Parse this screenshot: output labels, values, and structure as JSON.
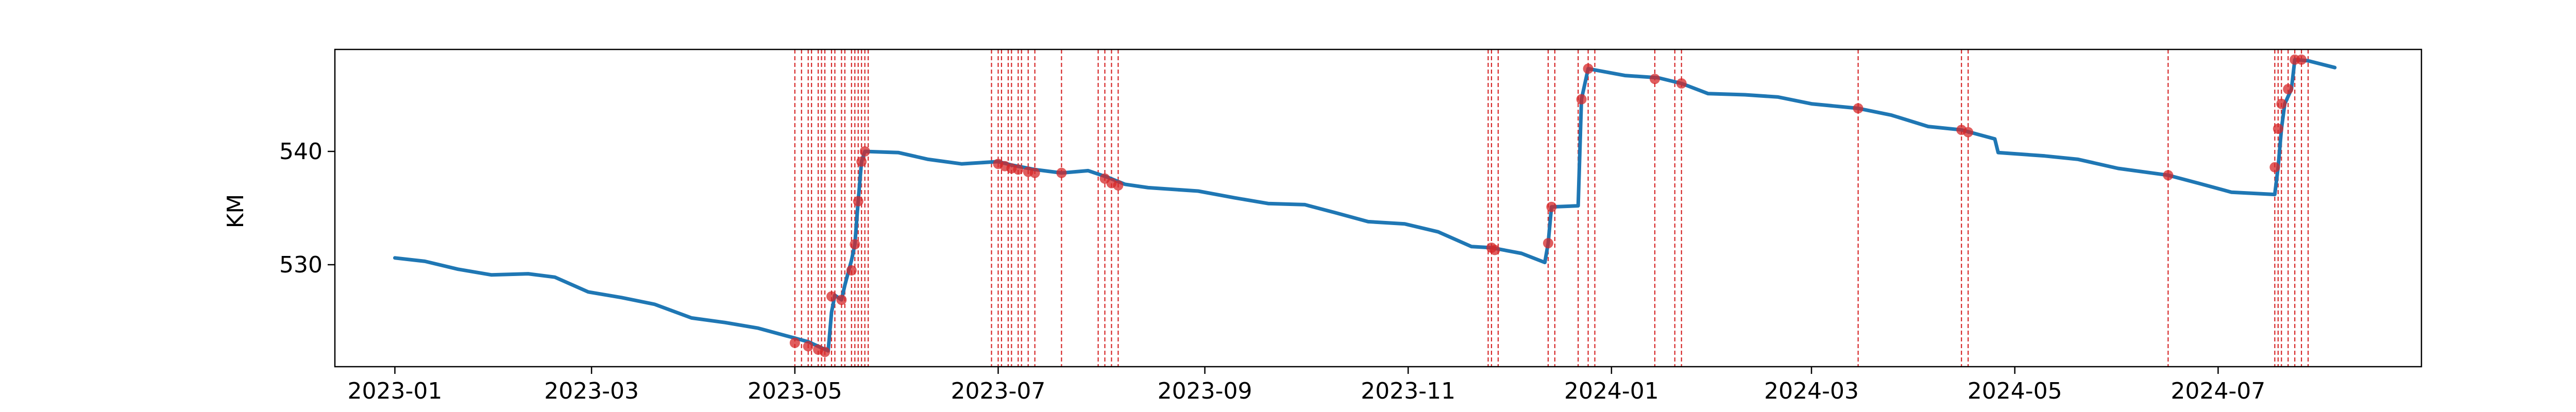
{
  "chart_data": {
    "type": "line",
    "title": "",
    "xlabel": "",
    "ylabel": "KM",
    "xlim": [
      "2022-12-14",
      "2024-08-31"
    ],
    "ylim": [
      521,
      549
    ],
    "grid": false,
    "line_color": "#1f77b4",
    "event_color": "#d62728",
    "x_ticks": [
      "2023-01-01",
      "2023-03-01",
      "2023-05-01",
      "2023-07-01",
      "2023-09-01",
      "2023-11-01",
      "2024-01-01",
      "2024-03-01",
      "2024-05-01",
      "2024-07-01"
    ],
    "x_tick_labels": [
      "2023-01",
      "2023-03",
      "2023-05",
      "2023-07",
      "2023-09",
      "2023-11",
      "2024-01",
      "2024-03",
      "2024-05",
      "2024-07"
    ],
    "y_ticks": [
      530,
      540
    ],
    "y_tick_labels": [
      "530",
      "540"
    ],
    "series": [
      {
        "values": [
          [
            "2023-01-01",
            530.6
          ],
          [
            "2023-01-10",
            530.3
          ],
          [
            "2023-01-20",
            529.6
          ],
          [
            "2023-01-30",
            529.1
          ],
          [
            "2023-02-10",
            529.2
          ],
          [
            "2023-02-18",
            528.9
          ],
          [
            "2023-02-28",
            527.6
          ],
          [
            "2023-03-10",
            527.1
          ],
          [
            "2023-03-20",
            526.5
          ],
          [
            "2023-03-31",
            525.3
          ],
          [
            "2023-04-10",
            524.9
          ],
          [
            "2023-04-20",
            524.4
          ],
          [
            "2023-04-30",
            523.6
          ],
          [
            "2023-05-05",
            523.2
          ],
          [
            "2023-05-08",
            522.8
          ],
          [
            "2023-05-11",
            522.4
          ],
          [
            "2023-05-12",
            525.8
          ],
          [
            "2023-05-13",
            527.3
          ],
          [
            "2023-05-15",
            526.9
          ],
          [
            "2023-05-16",
            528.2
          ],
          [
            "2023-05-18",
            530.4
          ],
          [
            "2023-05-19",
            531.8
          ],
          [
            "2023-05-20",
            535.6
          ],
          [
            "2023-05-21",
            539.1
          ],
          [
            "2023-05-22",
            540.0
          ],
          [
            "2023-06-01",
            539.9
          ],
          [
            "2023-06-10",
            539.3
          ],
          [
            "2023-06-20",
            538.9
          ],
          [
            "2023-07-01",
            539.1
          ],
          [
            "2023-07-05",
            538.8
          ],
          [
            "2023-07-12",
            538.4
          ],
          [
            "2023-07-20",
            538.1
          ],
          [
            "2023-07-28",
            538.3
          ],
          [
            "2023-08-03",
            537.7
          ],
          [
            "2023-08-08",
            537.1
          ],
          [
            "2023-08-15",
            536.8
          ],
          [
            "2023-08-30",
            536.5
          ],
          [
            "2023-09-10",
            535.9
          ],
          [
            "2023-09-20",
            535.4
          ],
          [
            "2023-10-01",
            535.3
          ],
          [
            "2023-10-10",
            534.6
          ],
          [
            "2023-10-20",
            533.8
          ],
          [
            "2023-10-31",
            533.6
          ],
          [
            "2023-11-10",
            532.9
          ],
          [
            "2023-11-20",
            531.6
          ],
          [
            "2023-11-26",
            531.5
          ],
          [
            "2023-12-05",
            531.0
          ],
          [
            "2023-12-12",
            530.2
          ],
          [
            "2023-12-13",
            531.9
          ],
          [
            "2023-12-14",
            535.1
          ],
          [
            "2023-12-22",
            535.2
          ],
          [
            "2023-12-23",
            544.6
          ],
          [
            "2023-12-25",
            547.3
          ],
          [
            "2024-01-05",
            546.7
          ],
          [
            "2024-01-15",
            546.5
          ],
          [
            "2024-01-22",
            546.0
          ],
          [
            "2024-01-30",
            545.1
          ],
          [
            "2024-02-10",
            545.0
          ],
          [
            "2024-02-20",
            544.8
          ],
          [
            "2024-03-01",
            544.2
          ],
          [
            "2024-03-15",
            543.8
          ],
          [
            "2024-03-25",
            543.2
          ],
          [
            "2024-04-05",
            542.2
          ],
          [
            "2024-04-15",
            541.9
          ],
          [
            "2024-04-20",
            541.5
          ],
          [
            "2024-04-25",
            541.1
          ],
          [
            "2024-04-26",
            539.9
          ],
          [
            "2024-05-10",
            539.6
          ],
          [
            "2024-05-20",
            539.3
          ],
          [
            "2024-06-01",
            538.5
          ],
          [
            "2024-06-16",
            537.9
          ],
          [
            "2024-06-25",
            537.2
          ],
          [
            "2024-07-05",
            536.4
          ],
          [
            "2024-07-18",
            536.2
          ],
          [
            "2024-07-19",
            538.6
          ],
          [
            "2024-07-20",
            542.0
          ],
          [
            "2024-07-21",
            544.2
          ],
          [
            "2024-07-23",
            545.5
          ],
          [
            "2024-07-24",
            548.1
          ],
          [
            "2024-07-28",
            548.0
          ],
          [
            "2024-08-05",
            547.4
          ]
        ]
      }
    ],
    "events": [
      "2023-05-01",
      "2023-05-03",
      "2023-05-05",
      "2023-05-06",
      "2023-05-08",
      "2023-05-09",
      "2023-05-10",
      "2023-05-12",
      "2023-05-13",
      "2023-05-15",
      "2023-05-16",
      "2023-05-18",
      "2023-05-19",
      "2023-05-20",
      "2023-05-21",
      "2023-05-22",
      "2023-05-23",
      "2023-06-29",
      "2023-07-01",
      "2023-07-02",
      "2023-07-04",
      "2023-07-05",
      "2023-07-07",
      "2023-07-08",
      "2023-07-10",
      "2023-07-12",
      "2023-07-20",
      "2023-07-31",
      "2023-08-02",
      "2023-08-04",
      "2023-08-06",
      "2023-11-25",
      "2023-11-26",
      "2023-11-28",
      "2023-12-13",
      "2023-12-15",
      "2023-12-22",
      "2023-12-25",
      "2023-12-27",
      "2024-01-14",
      "2024-01-20",
      "2024-01-22",
      "2024-03-15",
      "2024-04-15",
      "2024-04-17",
      "2024-06-16",
      "2024-07-18",
      "2024-07-19",
      "2024-07-20",
      "2024-07-22",
      "2024-07-24",
      "2024-07-26",
      "2024-07-28"
    ],
    "event_markers": [
      [
        "2023-05-01",
        523.1
      ],
      [
        "2023-05-05",
        522.8
      ],
      [
        "2023-05-08",
        522.5
      ],
      [
        "2023-05-10",
        522.3
      ],
      [
        "2023-05-12",
        527.2
      ],
      [
        "2023-05-15",
        526.9
      ],
      [
        "2023-05-18",
        529.5
      ],
      [
        "2023-05-19",
        531.8
      ],
      [
        "2023-05-20",
        535.6
      ],
      [
        "2023-05-21",
        539.1
      ],
      [
        "2023-05-22",
        540.0
      ],
      [
        "2023-07-01",
        538.9
      ],
      [
        "2023-07-03",
        538.7
      ],
      [
        "2023-07-05",
        538.5
      ],
      [
        "2023-07-07",
        538.4
      ],
      [
        "2023-07-10",
        538.2
      ],
      [
        "2023-07-12",
        538.1
      ],
      [
        "2023-07-20",
        538.1
      ],
      [
        "2023-08-02",
        537.6
      ],
      [
        "2023-08-04",
        537.2
      ],
      [
        "2023-08-06",
        537.0
      ],
      [
        "2023-11-26",
        531.5
      ],
      [
        "2023-11-27",
        531.3
      ],
      [
        "2023-12-13",
        531.9
      ],
      [
        "2023-12-14",
        535.1
      ],
      [
        "2023-12-23",
        544.6
      ],
      [
        "2023-12-25",
        547.3
      ],
      [
        "2024-01-14",
        546.4
      ],
      [
        "2024-01-22",
        546.0
      ],
      [
        "2024-03-15",
        543.8
      ],
      [
        "2024-04-15",
        541.9
      ],
      [
        "2024-04-17",
        541.7
      ],
      [
        "2024-06-16",
        537.9
      ],
      [
        "2024-07-18",
        538.6
      ],
      [
        "2024-07-19",
        542.0
      ],
      [
        "2024-07-20",
        544.2
      ],
      [
        "2024-07-22",
        545.5
      ],
      [
        "2024-07-24",
        548.1
      ],
      [
        "2024-07-26",
        548.1
      ]
    ]
  }
}
